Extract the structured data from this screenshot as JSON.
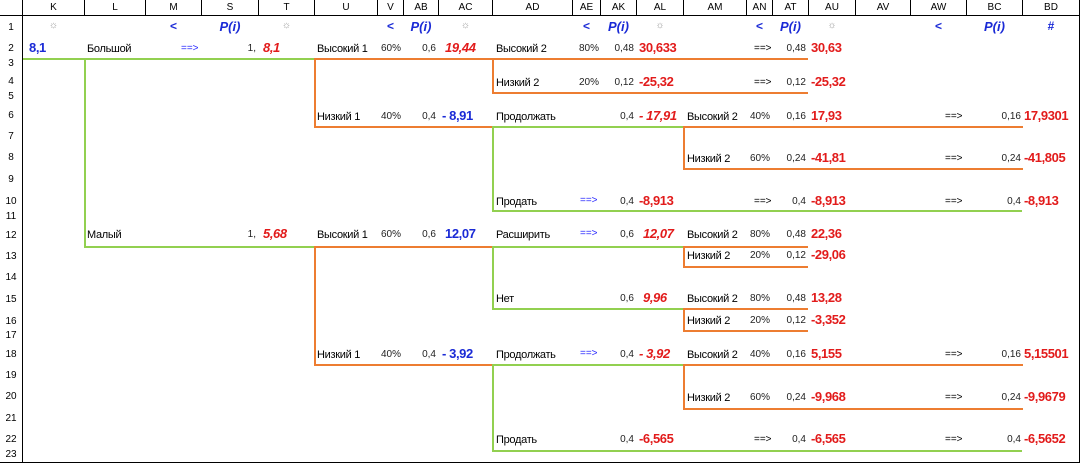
{
  "columns": [
    "K",
    "L",
    "M",
    "S",
    "T",
    "U",
    "V",
    "AB",
    "AC",
    "AD",
    "AE",
    "AK",
    "AL",
    "AM",
    "AN",
    "AT",
    "AU",
    "AV",
    "AW",
    "BC",
    "BD"
  ],
  "rows": [
    "1",
    "2",
    "3",
    "4",
    "5",
    "6",
    "7",
    "8",
    "9",
    "10",
    "11",
    "12",
    "13",
    "14",
    "15",
    "16",
    "17",
    "18",
    "19",
    "20",
    "21",
    "22",
    "23"
  ],
  "header_row": {
    "k": "☼",
    "m": "<",
    "s": "P(i)",
    "t": "☼",
    "v": "<",
    "ab": "P(i)",
    "ac": "☼",
    "ae": "<",
    "ak": "P(i)",
    "al": "☼",
    "an": "<",
    "at": "P(i)",
    "au": "☼",
    "aw": "<",
    "bc": "P(i)",
    "bd": "#"
  },
  "tree": {
    "root_value": "8,1",
    "big": {
      "label": "Большой",
      "arrow": "==>",
      "prob": "1,",
      "value": "8,1",
      "high1": {
        "label": "Высокий 1",
        "pct": "60%",
        "prob": "0,6",
        "value": "19,44",
        "high2": {
          "label": "Высокий 2",
          "pct": "80%",
          "prob": "0,48",
          "value": "30,633",
          "arrow": "==>",
          "prob2": "0,48",
          "end": "30,63"
        },
        "low2": {
          "label": "Низкий 2",
          "pct": "20%",
          "prob": "0,12",
          "value": "-25,32",
          "arrow": "==>",
          "prob2": "0,12",
          "end": "-25,32"
        }
      },
      "low1": {
        "label": "Низкий 1",
        "pct": "40%",
        "prob": "0,4",
        "value": "- 8,91",
        "continue": {
          "label": "Продолжать",
          "prob": "0,4",
          "value": "- 17,91",
          "high2": {
            "label": "Высокий 2",
            "pct": "40%",
            "prob": "0,16",
            "value": "17,93",
            "arrow": "==>",
            "prob2": "0,16",
            "end": "17,9301"
          },
          "low2": {
            "label": "Низкий 2",
            "pct": "60%",
            "prob": "0,24",
            "value": "-41,81",
            "arrow": "==>",
            "prob2": "0,24",
            "end": "-41,805"
          }
        },
        "sell": {
          "label": "Продать",
          "arrow": "==>",
          "prob": "0,4",
          "value": "-8,913",
          "arrow2": "==>",
          "prob2": "0,4",
          "value2": "-8,913",
          "arrow3": "==>",
          "prob3": "0,4",
          "end": "-8,913"
        }
      }
    },
    "small": {
      "label": "Малый",
      "prob": "1,",
      "value": "5,68",
      "high1": {
        "label": "Высокий 1",
        "pct": "60%",
        "prob": "0,6",
        "value": "12,07",
        "expand": {
          "label": "Расширить",
          "arrow": "==>",
          "prob": "0,6",
          "value": "12,07",
          "high2": {
            "label": "Высокий 2",
            "pct": "80%",
            "prob": "0,48",
            "value": "22,36"
          },
          "low2": {
            "label": "Низкий 2",
            "pct": "20%",
            "prob": "0,12",
            "value": "-29,06"
          }
        },
        "no": {
          "label": "Нет",
          "prob": "0,6",
          "value": "9,96",
          "high2": {
            "label": "Высокий 2",
            "pct": "80%",
            "prob": "0,48",
            "value": "13,28"
          },
          "low2": {
            "label": "Низкий 2",
            "pct": "20%",
            "prob": "0,12",
            "value": "-3,352"
          }
        }
      },
      "low1": {
        "label": "Низкий 1",
        "pct": "40%",
        "prob": "0,4",
        "value": "- 3,92",
        "continue": {
          "label": "Продолжать",
          "arrow": "==>",
          "prob": "0,4",
          "value": "- 3,92",
          "high2": {
            "label": "Высокий 2",
            "pct": "40%",
            "prob": "0,16",
            "value": "5,155",
            "arrow": "==>",
            "prob2": "0,16",
            "end": "5,15501"
          },
          "low2": {
            "label": "Низкий 2",
            "pct": "60%",
            "prob": "0,24",
            "value": "-9,968",
            "arrow": "==>",
            "prob2": "0,24",
            "end": "-9,9679"
          }
        },
        "sell": {
          "label": "Продать",
          "prob": "0,4",
          "value": "-6,565",
          "arrow2": "==>",
          "prob2": "0,4",
          "value2": "-6,565",
          "arrow3": "==>",
          "prob3": "0,4",
          "end": "-6,5652"
        }
      }
    }
  }
}
